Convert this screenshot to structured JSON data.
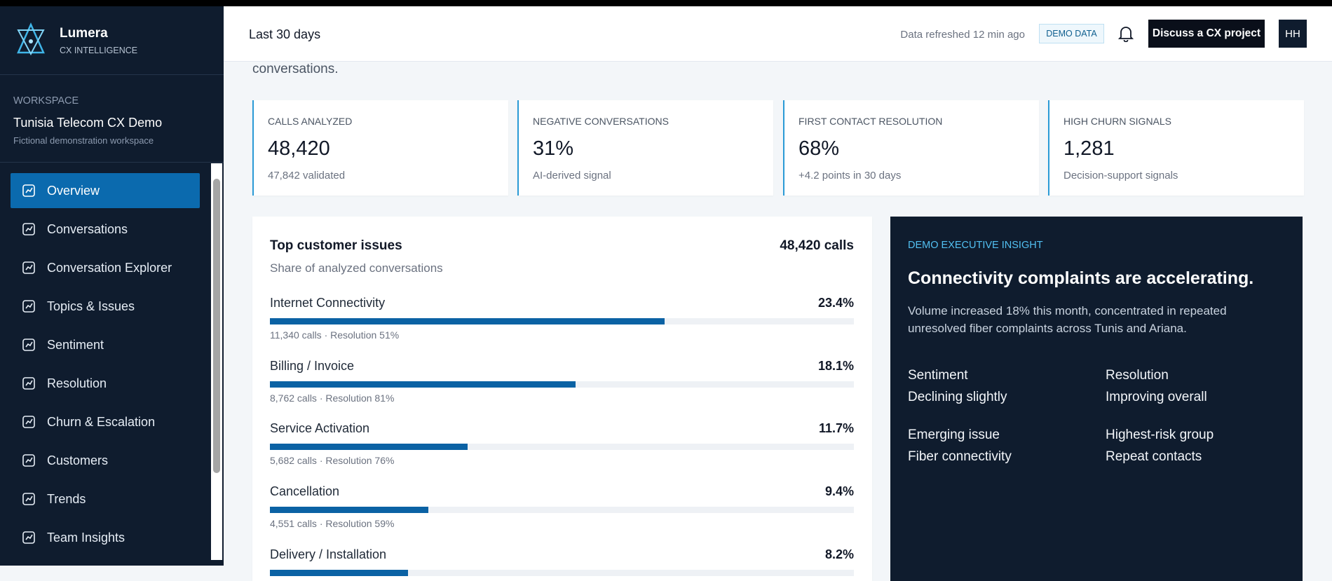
{
  "sidebar": {
    "brand": "Lumera",
    "brand_sub": "CX INTELLIGENCE",
    "workspace_label": "WORKSPACE",
    "workspace_name": "Tunisia Telecom CX Demo",
    "workspace_note": "Fictional demonstration workspace",
    "nav": [
      "Overview",
      "Conversations",
      "Conversation Explorer",
      "Topics & Issues",
      "Sentiment",
      "Resolution",
      "Churn & Escalation",
      "Customers",
      "Trends",
      "Team Insights"
    ],
    "active_index": 0
  },
  "header": {
    "range": "Last 30 days",
    "refreshed": "Data refreshed 12 min ago",
    "badge": "DEMO DATA",
    "cta": "Discuss a CX project",
    "avatar": "HH"
  },
  "intro_tail": "conversations.",
  "kpis": [
    {
      "label": "CALLS ANALYZED",
      "value": "48,420",
      "note": "47,842 validated"
    },
    {
      "label": "NEGATIVE CONVERSATIONS",
      "value": "31%",
      "note": "AI-derived signal"
    },
    {
      "label": "FIRST CONTACT RESOLUTION",
      "value": "68%",
      "note": "+4.2 points in 30 days"
    },
    {
      "label": "HIGH CHURN SIGNALS",
      "value": "1,281",
      "note": "Decision-support signals"
    }
  ],
  "issues": {
    "title": "Top customer issues",
    "subtitle": "Share of analyzed conversations",
    "total": "48,420 calls",
    "items": [
      {
        "name": "Internet Connectivity",
        "share": 23.4,
        "share_label": "23.4%",
        "detail": "11,340 calls · Resolution 51%"
      },
      {
        "name": "Billing / Invoice",
        "share": 18.1,
        "share_label": "18.1%",
        "detail": "8,762 calls · Resolution 81%"
      },
      {
        "name": "Service Activation",
        "share": 11.7,
        "share_label": "11.7%",
        "detail": "5,682 calls · Resolution 76%"
      },
      {
        "name": "Cancellation",
        "share": 9.4,
        "share_label": "9.4%",
        "detail": "4,551 calls · Resolution 59%"
      },
      {
        "name": "Delivery / Installation",
        "share": 8.2,
        "share_label": "8.2%"
      }
    ]
  },
  "insight": {
    "label": "DEMO EXECUTIVE INSIGHT",
    "headline": "Connectivity complaints are accelerating.",
    "body": "Volume increased 18% this month, concentrated in repeated unresolved fiber complaints across Tunis and Ariana.",
    "facts": [
      {
        "label": "Sentiment",
        "value": "Declining slightly"
      },
      {
        "label": "Resolution",
        "value": "Improving overall"
      },
      {
        "label": "Emerging issue",
        "value": "Fiber connectivity"
      },
      {
        "label": "Highest-risk group",
        "value": "Repeat contacts"
      }
    ]
  }
}
